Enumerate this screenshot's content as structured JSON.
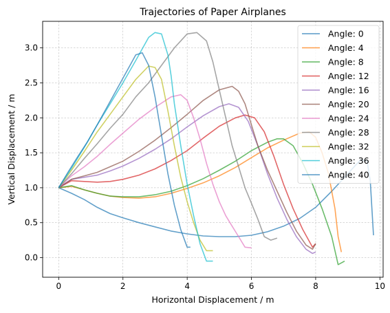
{
  "chart_data": {
    "type": "line",
    "title": "Trajectories of Paper Airplanes",
    "xlabel": "Horizontal Displacement / m",
    "ylabel": "Vertical Displacement / m",
    "xlim": [
      -0.5,
      10.1
    ],
    "ylim": [
      -0.28,
      3.38
    ],
    "xticks": [
      0,
      2,
      4,
      6,
      8,
      10
    ],
    "yticks": [
      0.0,
      0.5,
      1.0,
      1.5,
      2.0,
      2.5,
      3.0
    ],
    "xtick_labels": [
      "0",
      "2",
      "4",
      "6",
      "8",
      "10"
    ],
    "ytick_labels": [
      "0.0",
      "0.5",
      "1.0",
      "1.5",
      "2.0",
      "2.5",
      "3.0"
    ],
    "grid": true,
    "legend_position": "top-right",
    "series": [
      {
        "name": "Angle: 0",
        "color": "#1f77b4",
        "x": [
          0,
          0.4,
          0.8,
          1.2,
          1.6,
          2.0,
          2.5,
          3.0,
          3.5,
          4.0,
          4.5,
          5.0,
          5.5,
          6.0,
          6.5,
          7.0,
          7.5,
          8.0,
          8.5,
          9.0,
          9.4,
          9.6,
          9.7,
          9.75,
          9.8
        ],
        "y": [
          1.0,
          0.92,
          0.83,
          0.72,
          0.63,
          0.57,
          0.5,
          0.44,
          0.38,
          0.34,
          0.31,
          0.3,
          0.3,
          0.32,
          0.37,
          0.45,
          0.56,
          0.72,
          0.95,
          1.2,
          1.4,
          1.38,
          1.1,
          0.7,
          0.32
        ]
      },
      {
        "name": "Angle: 4",
        "color": "#ff7f0e",
        "x": [
          0,
          0.4,
          0.8,
          1.2,
          1.6,
          2.0,
          2.5,
          3.0,
          3.5,
          4.0,
          4.5,
          5.0,
          5.5,
          6.0,
          6.5,
          7.0,
          7.5,
          7.8,
          8.0,
          8.2,
          8.4,
          8.6,
          8.7,
          8.8
        ],
        "y": [
          1.0,
          1.02,
          0.97,
          0.92,
          0.88,
          0.86,
          0.85,
          0.87,
          0.92,
          0.99,
          1.07,
          1.17,
          1.29,
          1.43,
          1.57,
          1.68,
          1.78,
          1.8,
          1.72,
          1.5,
          1.2,
          0.7,
          0.3,
          0.08
        ]
      },
      {
        "name": "Angle: 8",
        "color": "#2ca02c",
        "x": [
          0,
          0.4,
          0.8,
          1.2,
          1.6,
          2.0,
          2.5,
          3.0,
          3.5,
          4.0,
          4.5,
          5.0,
          5.5,
          6.0,
          6.5,
          6.8,
          7.0,
          7.3,
          7.6,
          7.9,
          8.2,
          8.5,
          8.7,
          8.9
        ],
        "y": [
          1.0,
          1.03,
          0.97,
          0.92,
          0.88,
          0.87,
          0.87,
          0.9,
          0.95,
          1.03,
          1.13,
          1.25,
          1.38,
          1.53,
          1.65,
          1.7,
          1.7,
          1.6,
          1.35,
          1.05,
          0.7,
          0.3,
          -0.1,
          -0.05
        ]
      },
      {
        "name": "Angle: 12",
        "color": "#d62728",
        "x": [
          0,
          0.4,
          0.8,
          1.2,
          1.6,
          2.0,
          2.5,
          3.0,
          3.5,
          4.0,
          4.5,
          5.0,
          5.5,
          5.8,
          6.1,
          6.4,
          6.7,
          7.0,
          7.3,
          7.6,
          7.9,
          8.0
        ],
        "y": [
          1.0,
          1.1,
          1.09,
          1.08,
          1.09,
          1.12,
          1.18,
          1.27,
          1.39,
          1.53,
          1.71,
          1.88,
          2.0,
          2.04,
          2.0,
          1.8,
          1.45,
          1.05,
          0.7,
          0.4,
          0.15,
          0.2
        ]
      },
      {
        "name": "Angle: 16",
        "color": "#9467bd",
        "x": [
          0,
          0.4,
          0.8,
          1.2,
          1.6,
          2.0,
          2.5,
          3.0,
          3.5,
          4.0,
          4.5,
          5.0,
          5.3,
          5.6,
          5.9,
          6.2,
          6.5,
          6.8,
          7.1,
          7.4,
          7.7,
          7.9,
          8.0
        ],
        "y": [
          1.0,
          1.12,
          1.15,
          1.18,
          1.24,
          1.31,
          1.42,
          1.55,
          1.7,
          1.87,
          2.03,
          2.16,
          2.2,
          2.15,
          1.95,
          1.6,
          1.2,
          0.85,
          0.55,
          0.3,
          0.12,
          0.06,
          0.08
        ]
      },
      {
        "name": "Angle: 20",
        "color": "#8c564b",
        "x": [
          0,
          0.4,
          0.8,
          1.2,
          1.6,
          2.0,
          2.5,
          3.0,
          3.5,
          4.0,
          4.5,
          5.0,
          5.4,
          5.6,
          5.8,
          6.0,
          6.2,
          6.5,
          6.8,
          7.1,
          7.4,
          7.7,
          7.9,
          8.0
        ],
        "y": [
          1.0,
          1.12,
          1.17,
          1.22,
          1.3,
          1.38,
          1.52,
          1.68,
          1.86,
          2.05,
          2.25,
          2.4,
          2.45,
          2.38,
          2.2,
          1.9,
          1.6,
          1.25,
          0.95,
          0.65,
          0.38,
          0.18,
          0.12,
          0.2
        ]
      },
      {
        "name": "Angle: 24",
        "color": "#e377c2",
        "x": [
          0,
          0.4,
          0.8,
          1.2,
          1.6,
          2.0,
          2.5,
          3.0,
          3.5,
          3.8,
          4.0,
          4.2,
          4.4,
          4.6,
          4.8,
          5.0,
          5.2,
          5.4,
          5.6,
          5.8,
          6.0
        ],
        "y": [
          1.0,
          1.17,
          1.3,
          1.45,
          1.62,
          1.78,
          1.98,
          2.15,
          2.3,
          2.33,
          2.25,
          2.0,
          1.7,
          1.35,
          1.05,
          0.8,
          0.6,
          0.45,
          0.3,
          0.15,
          0.14
        ]
      },
      {
        "name": "Angle: 28",
        "color": "#7f7f7f",
        "x": [
          0,
          0.4,
          0.8,
          1.2,
          1.6,
          2.0,
          2.4,
          2.8,
          3.2,
          3.6,
          4.0,
          4.3,
          4.6,
          4.8,
          5.0,
          5.2,
          5.4,
          5.6,
          5.8,
          6.0,
          6.2,
          6.4,
          6.6,
          6.8
        ],
        "y": [
          1.0,
          1.2,
          1.42,
          1.63,
          1.85,
          2.05,
          2.3,
          2.5,
          2.75,
          3.0,
          3.2,
          3.22,
          3.1,
          2.8,
          2.4,
          2.0,
          1.6,
          1.3,
          1.0,
          0.78,
          0.55,
          0.3,
          0.25,
          0.28
        ]
      },
      {
        "name": "Angle: 32",
        "color": "#bcbd22",
        "x": [
          0,
          0.4,
          0.8,
          1.2,
          1.6,
          2.0,
          2.4,
          2.8,
          3.0,
          3.2,
          3.4,
          3.6,
          3.8,
          4.0,
          4.2,
          4.4,
          4.6,
          4.8
        ],
        "y": [
          1.0,
          1.25,
          1.52,
          1.8,
          2.05,
          2.3,
          2.55,
          2.74,
          2.72,
          2.55,
          2.1,
          1.6,
          1.15,
          0.8,
          0.5,
          0.25,
          0.1,
          0.1
        ]
      },
      {
        "name": "Angle: 36",
        "color": "#17becf",
        "x": [
          0,
          0.4,
          0.8,
          1.2,
          1.6,
          2.0,
          2.4,
          2.8,
          3.0,
          3.2,
          3.4,
          3.5,
          3.6,
          3.8,
          4.0,
          4.2,
          4.4,
          4.6,
          4.8
        ],
        "y": [
          1.0,
          1.28,
          1.58,
          1.9,
          2.2,
          2.5,
          2.82,
          3.15,
          3.22,
          3.2,
          2.9,
          2.6,
          2.2,
          1.6,
          1.05,
          0.6,
          0.2,
          -0.05,
          -0.05
        ]
      },
      {
        "name": "Angle: 40",
        "color": "#1f77b4",
        "x": [
          0,
          0.3,
          0.6,
          0.9,
          1.2,
          1.5,
          1.8,
          2.1,
          2.4,
          2.6,
          2.8,
          3.0,
          3.2,
          3.4,
          3.6,
          3.8,
          4.0,
          4.1
        ],
        "y": [
          1.0,
          1.23,
          1.45,
          1.66,
          1.9,
          2.15,
          2.4,
          2.65,
          2.9,
          2.93,
          2.75,
          2.3,
          1.75,
          1.2,
          0.75,
          0.4,
          0.15,
          0.15
        ]
      }
    ]
  }
}
